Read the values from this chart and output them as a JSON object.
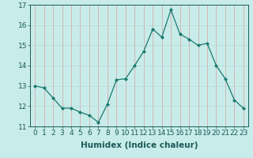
{
  "x": [
    0,
    1,
    2,
    3,
    4,
    5,
    6,
    7,
    8,
    9,
    10,
    11,
    12,
    13,
    14,
    15,
    16,
    17,
    18,
    19,
    20,
    21,
    22,
    23
  ],
  "y": [
    13.0,
    12.9,
    12.4,
    11.9,
    11.9,
    11.7,
    11.55,
    11.2,
    12.1,
    13.3,
    13.35,
    14.0,
    14.7,
    15.8,
    15.4,
    16.75,
    15.55,
    15.3,
    15.0,
    15.1,
    14.0,
    13.35,
    12.3,
    11.9
  ],
  "line_color": "#1a7a6e",
  "marker": "D",
  "marker_size": 2.0,
  "bg_color": "#c8ecea",
  "grid_color_v": "#d8a0a0",
  "grid_color_h": "#b8d8d5",
  "xlabel": "Humidex (Indice chaleur)",
  "xlim": [
    -0.5,
    23.5
  ],
  "ylim": [
    11.0,
    17.0
  ],
  "yticks": [
    11,
    12,
    13,
    14,
    15,
    16,
    17
  ],
  "xticks": [
    0,
    1,
    2,
    3,
    4,
    5,
    6,
    7,
    8,
    9,
    10,
    11,
    12,
    13,
    14,
    15,
    16,
    17,
    18,
    19,
    20,
    21,
    22,
    23
  ],
  "tick_label_fontsize": 6.5,
  "xlabel_fontsize": 7.5
}
